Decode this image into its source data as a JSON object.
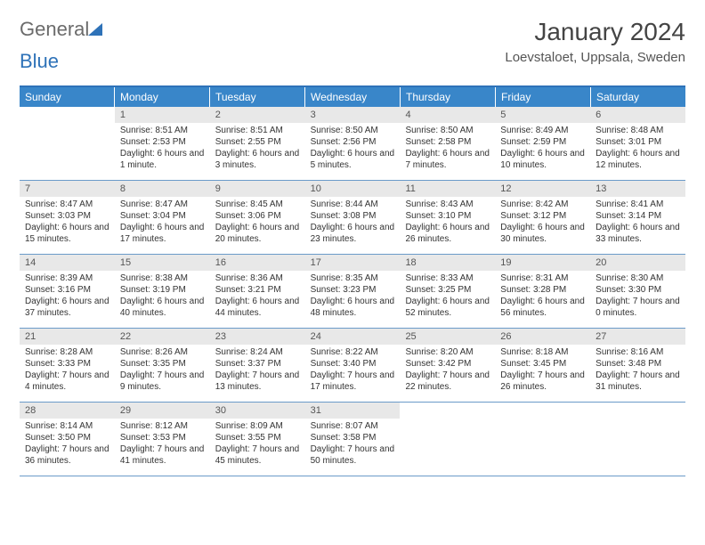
{
  "logo": {
    "part1": "General",
    "part2": "Blue"
  },
  "title": "January 2024",
  "location": "Loevstaloet, Uppsala, Sweden",
  "weekdays": [
    "Sunday",
    "Monday",
    "Tuesday",
    "Wednesday",
    "Thursday",
    "Friday",
    "Saturday"
  ],
  "colors": {
    "header_bar": "#3986c9",
    "border": "#6b9bc9",
    "day_number_bg": "#e8e8e8",
    "logo_gray": "#6b6b6b",
    "logo_blue": "#2e72b8",
    "text": "#333333"
  },
  "calendar": {
    "type": "calendar-grid",
    "first_weekday_index": 1,
    "num_days": 31,
    "days": [
      {
        "n": 1,
        "sunrise": "Sunrise: 8:51 AM",
        "sunset": "Sunset: 2:53 PM",
        "daylight": "Daylight: 6 hours and 1 minute."
      },
      {
        "n": 2,
        "sunrise": "Sunrise: 8:51 AM",
        "sunset": "Sunset: 2:55 PM",
        "daylight": "Daylight: 6 hours and 3 minutes."
      },
      {
        "n": 3,
        "sunrise": "Sunrise: 8:50 AM",
        "sunset": "Sunset: 2:56 PM",
        "daylight": "Daylight: 6 hours and 5 minutes."
      },
      {
        "n": 4,
        "sunrise": "Sunrise: 8:50 AM",
        "sunset": "Sunset: 2:58 PM",
        "daylight": "Daylight: 6 hours and 7 minutes."
      },
      {
        "n": 5,
        "sunrise": "Sunrise: 8:49 AM",
        "sunset": "Sunset: 2:59 PM",
        "daylight": "Daylight: 6 hours and 10 minutes."
      },
      {
        "n": 6,
        "sunrise": "Sunrise: 8:48 AM",
        "sunset": "Sunset: 3:01 PM",
        "daylight": "Daylight: 6 hours and 12 minutes."
      },
      {
        "n": 7,
        "sunrise": "Sunrise: 8:47 AM",
        "sunset": "Sunset: 3:03 PM",
        "daylight": "Daylight: 6 hours and 15 minutes."
      },
      {
        "n": 8,
        "sunrise": "Sunrise: 8:47 AM",
        "sunset": "Sunset: 3:04 PM",
        "daylight": "Daylight: 6 hours and 17 minutes."
      },
      {
        "n": 9,
        "sunrise": "Sunrise: 8:45 AM",
        "sunset": "Sunset: 3:06 PM",
        "daylight": "Daylight: 6 hours and 20 minutes."
      },
      {
        "n": 10,
        "sunrise": "Sunrise: 8:44 AM",
        "sunset": "Sunset: 3:08 PM",
        "daylight": "Daylight: 6 hours and 23 minutes."
      },
      {
        "n": 11,
        "sunrise": "Sunrise: 8:43 AM",
        "sunset": "Sunset: 3:10 PM",
        "daylight": "Daylight: 6 hours and 26 minutes."
      },
      {
        "n": 12,
        "sunrise": "Sunrise: 8:42 AM",
        "sunset": "Sunset: 3:12 PM",
        "daylight": "Daylight: 6 hours and 30 minutes."
      },
      {
        "n": 13,
        "sunrise": "Sunrise: 8:41 AM",
        "sunset": "Sunset: 3:14 PM",
        "daylight": "Daylight: 6 hours and 33 minutes."
      },
      {
        "n": 14,
        "sunrise": "Sunrise: 8:39 AM",
        "sunset": "Sunset: 3:16 PM",
        "daylight": "Daylight: 6 hours and 37 minutes."
      },
      {
        "n": 15,
        "sunrise": "Sunrise: 8:38 AM",
        "sunset": "Sunset: 3:19 PM",
        "daylight": "Daylight: 6 hours and 40 minutes."
      },
      {
        "n": 16,
        "sunrise": "Sunrise: 8:36 AM",
        "sunset": "Sunset: 3:21 PM",
        "daylight": "Daylight: 6 hours and 44 minutes."
      },
      {
        "n": 17,
        "sunrise": "Sunrise: 8:35 AM",
        "sunset": "Sunset: 3:23 PM",
        "daylight": "Daylight: 6 hours and 48 minutes."
      },
      {
        "n": 18,
        "sunrise": "Sunrise: 8:33 AM",
        "sunset": "Sunset: 3:25 PM",
        "daylight": "Daylight: 6 hours and 52 minutes."
      },
      {
        "n": 19,
        "sunrise": "Sunrise: 8:31 AM",
        "sunset": "Sunset: 3:28 PM",
        "daylight": "Daylight: 6 hours and 56 minutes."
      },
      {
        "n": 20,
        "sunrise": "Sunrise: 8:30 AM",
        "sunset": "Sunset: 3:30 PM",
        "daylight": "Daylight: 7 hours and 0 minutes."
      },
      {
        "n": 21,
        "sunrise": "Sunrise: 8:28 AM",
        "sunset": "Sunset: 3:33 PM",
        "daylight": "Daylight: 7 hours and 4 minutes."
      },
      {
        "n": 22,
        "sunrise": "Sunrise: 8:26 AM",
        "sunset": "Sunset: 3:35 PM",
        "daylight": "Daylight: 7 hours and 9 minutes."
      },
      {
        "n": 23,
        "sunrise": "Sunrise: 8:24 AM",
        "sunset": "Sunset: 3:37 PM",
        "daylight": "Daylight: 7 hours and 13 minutes."
      },
      {
        "n": 24,
        "sunrise": "Sunrise: 8:22 AM",
        "sunset": "Sunset: 3:40 PM",
        "daylight": "Daylight: 7 hours and 17 minutes."
      },
      {
        "n": 25,
        "sunrise": "Sunrise: 8:20 AM",
        "sunset": "Sunset: 3:42 PM",
        "daylight": "Daylight: 7 hours and 22 minutes."
      },
      {
        "n": 26,
        "sunrise": "Sunrise: 8:18 AM",
        "sunset": "Sunset: 3:45 PM",
        "daylight": "Daylight: 7 hours and 26 minutes."
      },
      {
        "n": 27,
        "sunrise": "Sunrise: 8:16 AM",
        "sunset": "Sunset: 3:48 PM",
        "daylight": "Daylight: 7 hours and 31 minutes."
      },
      {
        "n": 28,
        "sunrise": "Sunrise: 8:14 AM",
        "sunset": "Sunset: 3:50 PM",
        "daylight": "Daylight: 7 hours and 36 minutes."
      },
      {
        "n": 29,
        "sunrise": "Sunrise: 8:12 AM",
        "sunset": "Sunset: 3:53 PM",
        "daylight": "Daylight: 7 hours and 41 minutes."
      },
      {
        "n": 30,
        "sunrise": "Sunrise: 8:09 AM",
        "sunset": "Sunset: 3:55 PM",
        "daylight": "Daylight: 7 hours and 45 minutes."
      },
      {
        "n": 31,
        "sunrise": "Sunrise: 8:07 AM",
        "sunset": "Sunset: 3:58 PM",
        "daylight": "Daylight: 7 hours and 50 minutes."
      }
    ]
  }
}
